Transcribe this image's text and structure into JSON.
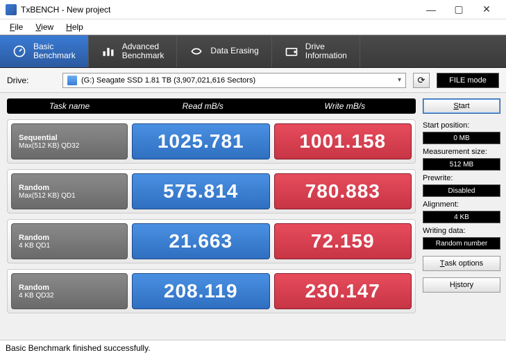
{
  "window": {
    "title": "TxBENCH - New project"
  },
  "menu": {
    "file": "File",
    "view": "View",
    "help": "Help"
  },
  "tabs": {
    "basic": "Basic\nBenchmark",
    "advanced": "Advanced\nBenchmark",
    "erasing": "Data Erasing",
    "driveinfo": "Drive\nInformation"
  },
  "drive": {
    "label": "Drive:",
    "selected": "(G:) Seagate SSD  1.81 TB (3,907,021,616 Sectors)",
    "filemode": "FILE mode"
  },
  "headers": {
    "task": "Task name",
    "read": "Read mB/s",
    "write": "Write mB/s"
  },
  "rows": [
    {
      "name": "Sequential",
      "sub": "Max(512 KB) QD32",
      "read": "1025.781",
      "write": "1001.158"
    },
    {
      "name": "Random",
      "sub": "Max(512 KB) QD1",
      "read": "575.814",
      "write": "780.883"
    },
    {
      "name": "Random",
      "sub": "4 KB QD1",
      "read": "21.663",
      "write": "72.159"
    },
    {
      "name": "Random",
      "sub": "4 KB QD32",
      "read": "208.119",
      "write": "230.147"
    }
  ],
  "side": {
    "start": "Start",
    "startpos_label": "Start position:",
    "startpos": "0 MB",
    "msize_label": "Measurement size:",
    "msize": "512 MB",
    "prewrite_label": "Prewrite:",
    "prewrite": "Disabled",
    "align_label": "Alignment:",
    "align": "4 KB",
    "wdata_label": "Writing data:",
    "wdata": "Random number",
    "taskopt": "Task options",
    "history": "History"
  },
  "status": "Basic Benchmark finished successfully.",
  "colors": {
    "read_bg": "#3a7bd5",
    "write_bg": "#d9414f",
    "task_bg": "#777777",
    "tab_active": "#2f6fc0"
  }
}
